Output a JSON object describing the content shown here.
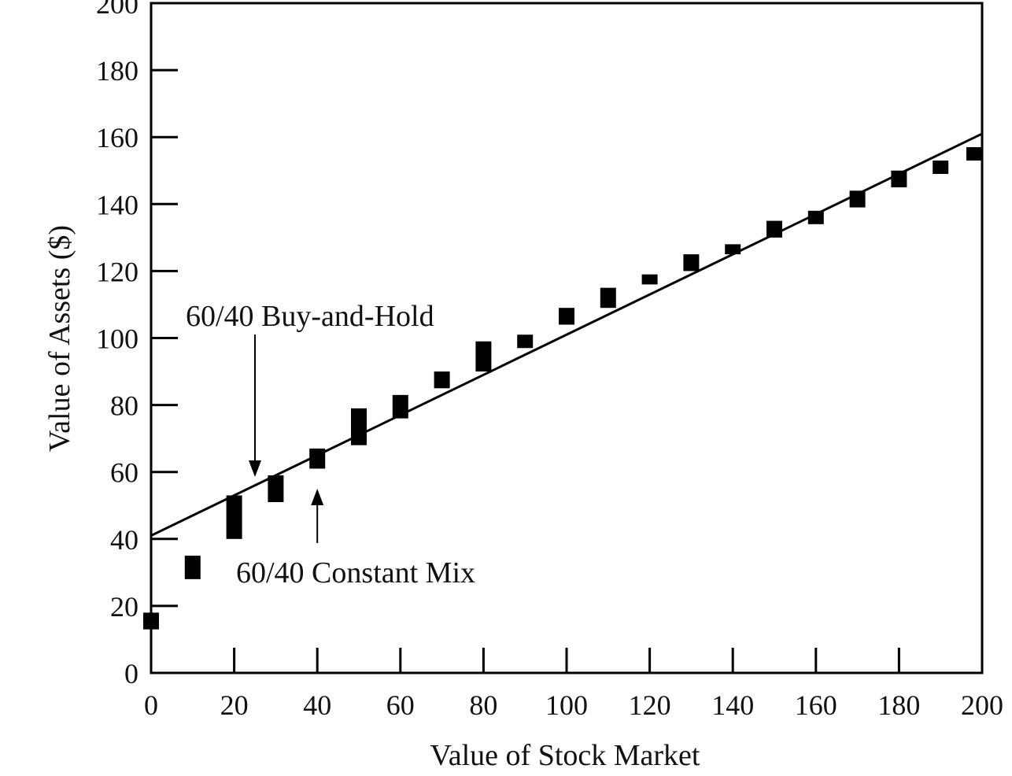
{
  "chart_data": {
    "type": "scatter",
    "title": "",
    "xlabel": "Value of Stock Market",
    "ylabel": "Value of Assets ($)",
    "xlim": [
      0,
      200
    ],
    "ylim": [
      0,
      200
    ],
    "grid": false,
    "x_ticks": [
      "0",
      "20",
      "40",
      "60",
      "80",
      "100",
      "120",
      "140",
      "160",
      "180",
      "200"
    ],
    "y_ticks": [
      "0",
      "20",
      "40",
      "60",
      "80",
      "100",
      "120",
      "140",
      "160",
      "180",
      "200"
    ],
    "series": [
      {
        "name": "60/40 Buy-and-Hold",
        "type": "line",
        "x": [
          0,
          200
        ],
        "y": [
          41,
          161
        ]
      },
      {
        "name": "60/40 Constant Mix",
        "type": "range-markers",
        "x": [
          0,
          10,
          20,
          30,
          40,
          50,
          60,
          70,
          80,
          90,
          100,
          110,
          120,
          130,
          140,
          150,
          160,
          170,
          180,
          190,
          200
        ],
        "low": [
          13,
          28,
          40,
          51,
          61,
          68,
          76,
          85,
          90,
          97,
          104,
          109,
          116,
          120,
          125,
          130,
          134,
          139,
          145,
          149,
          153
        ],
        "high": [
          18,
          35,
          53,
          59,
          67,
          79,
          83,
          90,
          99,
          101,
          109,
          115,
          119,
          125,
          128,
          135,
          138,
          144,
          150,
          153,
          157
        ]
      }
    ],
    "annotations": [
      {
        "text": "60/40 Buy-and-Hold",
        "points_to": "line",
        "arrow_x": 25
      },
      {
        "text": "60/40 Constant Mix",
        "points_to": "markers",
        "arrow_x": 40
      }
    ]
  }
}
